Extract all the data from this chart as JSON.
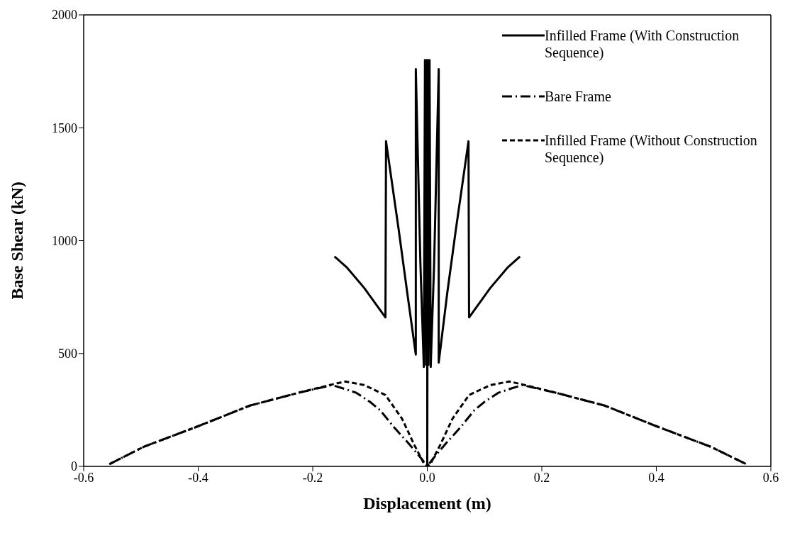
{
  "chart_data": {
    "type": "line",
    "xlabel": "Displacement (m)",
    "ylabel": "Base Shear (kN)",
    "xlim": [
      -0.6,
      0.6
    ],
    "ylim": [
      0,
      2000
    ],
    "xticks": [
      {
        "value": -0.6,
        "label": "-0.6"
      },
      {
        "value": -0.4,
        "label": "-0.4"
      },
      {
        "value": -0.2,
        "label": "-0.2"
      },
      {
        "value": 0,
        "label": "0.0"
      },
      {
        "value": 0.2,
        "label": "0.2"
      },
      {
        "value": 0.4,
        "label": "0.4"
      },
      {
        "value": 0.6,
        "label": "0.6"
      }
    ],
    "yticks": [
      0,
      500,
      1000,
      1500,
      2000
    ],
    "grid": false,
    "legend": "top right",
    "marker": "none",
    "series": [
      {
        "name": "Infilled Frame (With Construction Sequence)",
        "color": "#000000",
        "line_style": "solid",
        "x": [
          -0.162,
          -0.14,
          -0.11,
          -0.073,
          -0.072,
          -0.05,
          -0.035,
          -0.02,
          -0.02,
          -0.012,
          -0.006,
          -0.004,
          -0.002,
          -0.001,
          0,
          0,
          0.001,
          0.002,
          0.004,
          0.006,
          0.012,
          0.02,
          0.02,
          0.035,
          0.05,
          0.072,
          0.073,
          0.11,
          0.14,
          0.162
        ],
        "values": [
          930,
          880,
          790,
          660,
          1440,
          1050,
          770,
          495,
          1760,
          900,
          440,
          1800,
          450,
          1800,
          430,
          0,
          1800,
          450,
          1800,
          440,
          900,
          1760,
          460,
          770,
          1050,
          1440,
          660,
          790,
          880,
          930
        ]
      },
      {
        "name": "Bare Frame",
        "color": "#000000",
        "line_style": "dashdot",
        "x": [
          -0.555,
          -0.495,
          -0.403,
          -0.31,
          -0.225,
          -0.166,
          -0.149,
          -0.124,
          -0.099,
          -0.082,
          -0.057,
          -0.033,
          -0.01,
          0,
          0.01,
          0.033,
          0.057,
          0.082,
          0.099,
          0.124,
          0.149,
          0.166,
          0.225,
          0.31,
          0.403,
          0.495,
          0.557
        ],
        "values": [
          10,
          87,
          175,
          269,
          326,
          360,
          347,
          326,
          284,
          248,
          170,
          103,
          34,
          0,
          34,
          103,
          170,
          248,
          284,
          326,
          347,
          360,
          326,
          269,
          175,
          87,
          10
        ]
      },
      {
        "name": "Infilled Frame (Without Construction Sequence)",
        "color": "#000000",
        "line_style": "dashed",
        "x": [
          -0.555,
          -0.495,
          -0.403,
          -0.31,
          -0.225,
          -0.166,
          -0.143,
          -0.11,
          -0.073,
          -0.044,
          -0.023,
          -0.006,
          0,
          0.006,
          0.023,
          0.044,
          0.073,
          0.11,
          0.143,
          0.166,
          0.225,
          0.31,
          0.403,
          0.495,
          0.557
        ],
        "values": [
          10,
          87,
          175,
          269,
          326,
          363,
          376,
          360,
          316,
          211,
          97,
          13,
          0,
          13,
          97,
          211,
          316,
          360,
          376,
          363,
          326,
          269,
          175,
          87,
          10
        ]
      }
    ]
  }
}
